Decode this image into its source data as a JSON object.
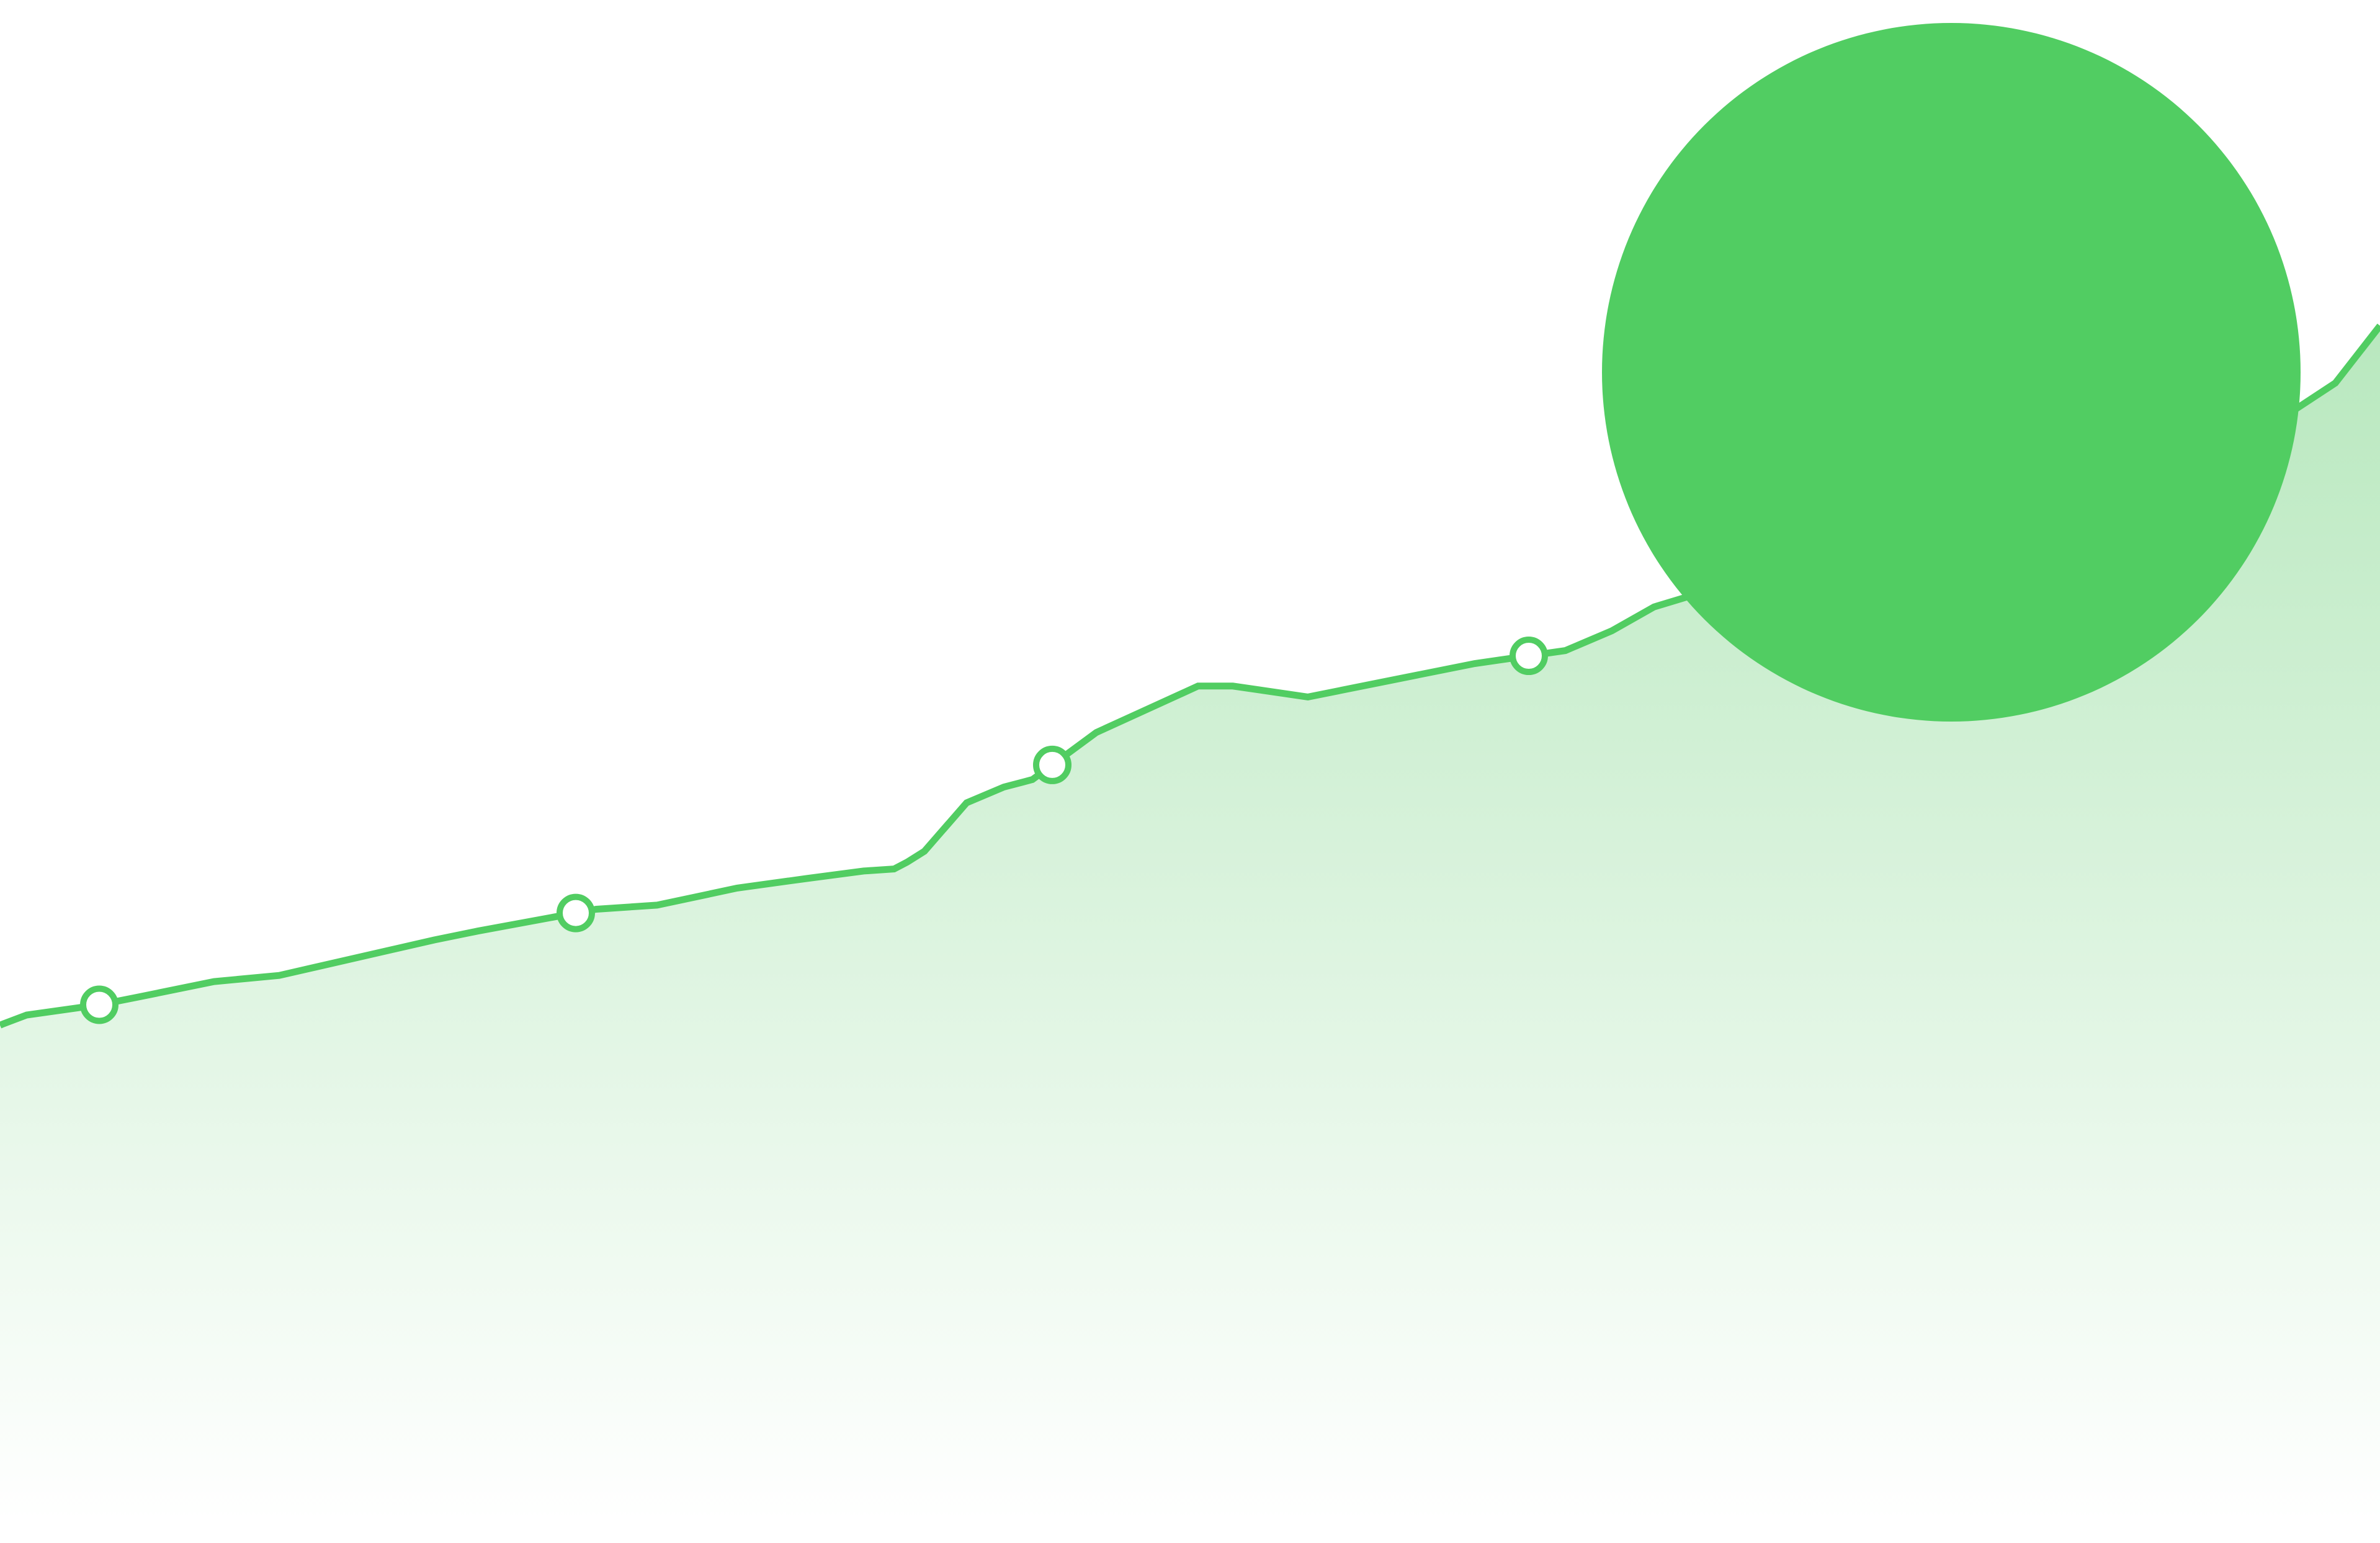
{
  "colors": {
    "accent": "#51CD62",
    "area_fill_top": "#B8E8BE",
    "marker_fill": "#FFFFFF",
    "background": "#FFFFFF"
  },
  "decoration": {
    "shape": "circle",
    "color": "#51CD62"
  },
  "chart_data": {
    "type": "area",
    "title": "",
    "xlabel": "",
    "ylabel": "",
    "grid": false,
    "legend": "none",
    "x": [
      0,
      5,
      43,
      160,
      221,
      345,
      450,
      700,
      770,
      961,
      1059,
      1111,
      1188,
      1300,
      1392,
      1441,
      1462,
      1490,
      1558,
      1618,
      1664,
      1767,
      1931,
      1987,
      2108,
      2223,
      2377,
      2523,
      2598,
      2666,
      2841,
      3003,
      3115,
      3187,
      3367,
      3413,
      3561,
      3585,
      3692,
      3764,
      3836
    ],
    "y": [
      0.725,
      0.727,
      0.74,
      0.755,
      0.766,
      0.789,
      0.798,
      0.85,
      0.863,
      0.895,
      0.901,
      0.911,
      0.926,
      0.94,
      0.951,
      0.954,
      0.964,
      0.98,
      1.051,
      1.074,
      1.085,
      1.154,
      1.222,
      1.222,
      1.206,
      1.227,
      1.255,
      1.274,
      1.303,
      1.338,
      1.386,
      1.391,
      1.407,
      1.434,
      1.472,
      1.528,
      1.59,
      1.603,
      1.623,
      1.666,
      1.75
    ],
    "markers_x": [
      160,
      928,
      1696,
      2464
    ],
    "markers_y": [
      0.92,
      0.986,
      1.078,
      1.2
    ],
    "xlim": [
      0,
      3836
    ],
    "ylim": [
      0,
      2
    ]
  }
}
